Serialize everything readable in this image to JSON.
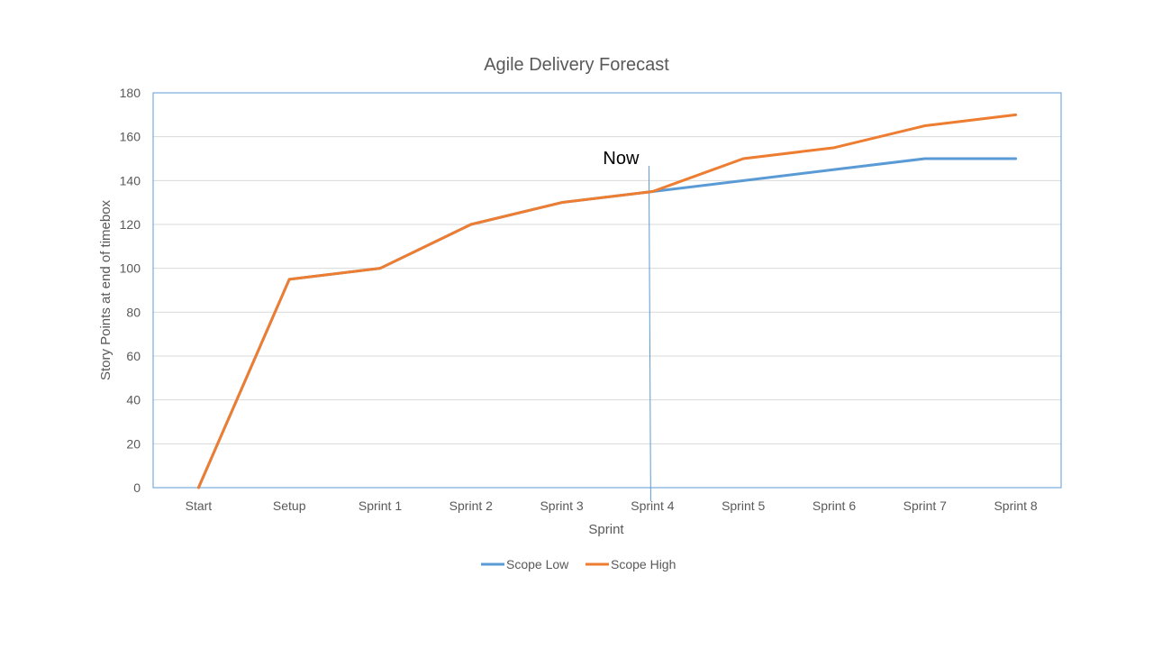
{
  "chart_data": {
    "type": "line",
    "title": "Agile Delivery Forecast",
    "xlabel": "Sprint",
    "ylabel": "Story Points at end of timebox",
    "categories": [
      "Start",
      "Setup",
      "Sprint 1",
      "Sprint 2",
      "Sprint 3",
      "Sprint 4",
      "Sprint 5",
      "Sprint 6",
      "Sprint 7",
      "Sprint 8"
    ],
    "ylim": [
      0,
      180
    ],
    "yticks": [
      "0",
      "20",
      "40",
      "60",
      "80",
      "100",
      "120",
      "140",
      "160",
      "180"
    ],
    "grid": true,
    "legend_position": "bottom",
    "series": [
      {
        "name": "Scope Low",
        "color": "#5B9BD5",
        "values": [
          0,
          95,
          100,
          120,
          130,
          135,
          140,
          145,
          150,
          150
        ]
      },
      {
        "name": "Scope High",
        "color": "#ED7D31",
        "values": [
          0,
          95,
          100,
          120,
          130,
          135,
          150,
          155,
          165,
          170
        ]
      }
    ],
    "annotations": [
      {
        "label": "Now",
        "category": "Sprint 4",
        "color": "#5B9BD5"
      }
    ],
    "axis_color": "#5B9BD5",
    "grid_color": "#D9D9D9"
  }
}
